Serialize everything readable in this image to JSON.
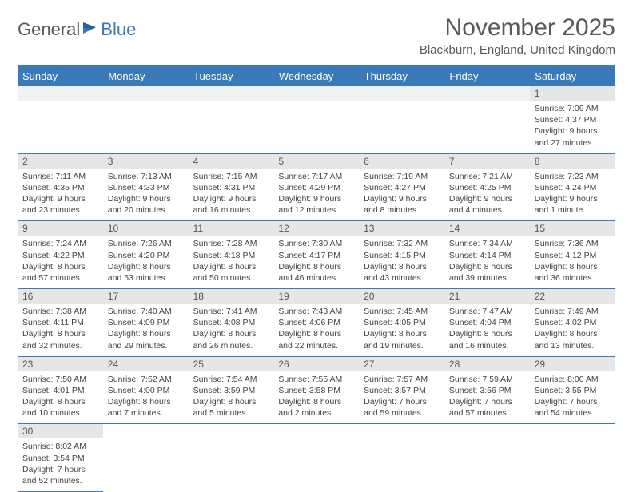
{
  "logo": {
    "word1": "General",
    "word2": "Blue"
  },
  "title": "November 2025",
  "subtitle": "Blackburn, England, United Kingdom",
  "day_headers": [
    "Sunday",
    "Monday",
    "Tuesday",
    "Wednesday",
    "Thursday",
    "Friday",
    "Saturday"
  ],
  "colors": {
    "header_bg": "#3a7ab8",
    "header_text": "#ffffff",
    "daynum_bg": "#e6e6e6",
    "rule": "#3a7ab8",
    "text": "#444444"
  },
  "weeks": [
    [
      {
        "n": "",
        "lines": []
      },
      {
        "n": "",
        "lines": []
      },
      {
        "n": "",
        "lines": []
      },
      {
        "n": "",
        "lines": []
      },
      {
        "n": "",
        "lines": []
      },
      {
        "n": "",
        "lines": []
      },
      {
        "n": "1",
        "lines": [
          "Sunrise: 7:09 AM",
          "Sunset: 4:37 PM",
          "Daylight: 9 hours and 27 minutes."
        ]
      }
    ],
    [
      {
        "n": "2",
        "lines": [
          "Sunrise: 7:11 AM",
          "Sunset: 4:35 PM",
          "Daylight: 9 hours and 23 minutes."
        ]
      },
      {
        "n": "3",
        "lines": [
          "Sunrise: 7:13 AM",
          "Sunset: 4:33 PM",
          "Daylight: 9 hours and 20 minutes."
        ]
      },
      {
        "n": "4",
        "lines": [
          "Sunrise: 7:15 AM",
          "Sunset: 4:31 PM",
          "Daylight: 9 hours and 16 minutes."
        ]
      },
      {
        "n": "5",
        "lines": [
          "Sunrise: 7:17 AM",
          "Sunset: 4:29 PM",
          "Daylight: 9 hours and 12 minutes."
        ]
      },
      {
        "n": "6",
        "lines": [
          "Sunrise: 7:19 AM",
          "Sunset: 4:27 PM",
          "Daylight: 9 hours and 8 minutes."
        ]
      },
      {
        "n": "7",
        "lines": [
          "Sunrise: 7:21 AM",
          "Sunset: 4:25 PM",
          "Daylight: 9 hours and 4 minutes."
        ]
      },
      {
        "n": "8",
        "lines": [
          "Sunrise: 7:23 AM",
          "Sunset: 4:24 PM",
          "Daylight: 9 hours and 1 minute."
        ]
      }
    ],
    [
      {
        "n": "9",
        "lines": [
          "Sunrise: 7:24 AM",
          "Sunset: 4:22 PM",
          "Daylight: 8 hours and 57 minutes."
        ]
      },
      {
        "n": "10",
        "lines": [
          "Sunrise: 7:26 AM",
          "Sunset: 4:20 PM",
          "Daylight: 8 hours and 53 minutes."
        ]
      },
      {
        "n": "11",
        "lines": [
          "Sunrise: 7:28 AM",
          "Sunset: 4:18 PM",
          "Daylight: 8 hours and 50 minutes."
        ]
      },
      {
        "n": "12",
        "lines": [
          "Sunrise: 7:30 AM",
          "Sunset: 4:17 PM",
          "Daylight: 8 hours and 46 minutes."
        ]
      },
      {
        "n": "13",
        "lines": [
          "Sunrise: 7:32 AM",
          "Sunset: 4:15 PM",
          "Daylight: 8 hours and 43 minutes."
        ]
      },
      {
        "n": "14",
        "lines": [
          "Sunrise: 7:34 AM",
          "Sunset: 4:14 PM",
          "Daylight: 8 hours and 39 minutes."
        ]
      },
      {
        "n": "15",
        "lines": [
          "Sunrise: 7:36 AM",
          "Sunset: 4:12 PM",
          "Daylight: 8 hours and 36 minutes."
        ]
      }
    ],
    [
      {
        "n": "16",
        "lines": [
          "Sunrise: 7:38 AM",
          "Sunset: 4:11 PM",
          "Daylight: 8 hours and 32 minutes."
        ]
      },
      {
        "n": "17",
        "lines": [
          "Sunrise: 7:40 AM",
          "Sunset: 4:09 PM",
          "Daylight: 8 hours and 29 minutes."
        ]
      },
      {
        "n": "18",
        "lines": [
          "Sunrise: 7:41 AM",
          "Sunset: 4:08 PM",
          "Daylight: 8 hours and 26 minutes."
        ]
      },
      {
        "n": "19",
        "lines": [
          "Sunrise: 7:43 AM",
          "Sunset: 4:06 PM",
          "Daylight: 8 hours and 22 minutes."
        ]
      },
      {
        "n": "20",
        "lines": [
          "Sunrise: 7:45 AM",
          "Sunset: 4:05 PM",
          "Daylight: 8 hours and 19 minutes."
        ]
      },
      {
        "n": "21",
        "lines": [
          "Sunrise: 7:47 AM",
          "Sunset: 4:04 PM",
          "Daylight: 8 hours and 16 minutes."
        ]
      },
      {
        "n": "22",
        "lines": [
          "Sunrise: 7:49 AM",
          "Sunset: 4:02 PM",
          "Daylight: 8 hours and 13 minutes."
        ]
      }
    ],
    [
      {
        "n": "23",
        "lines": [
          "Sunrise: 7:50 AM",
          "Sunset: 4:01 PM",
          "Daylight: 8 hours and 10 minutes."
        ]
      },
      {
        "n": "24",
        "lines": [
          "Sunrise: 7:52 AM",
          "Sunset: 4:00 PM",
          "Daylight: 8 hours and 7 minutes."
        ]
      },
      {
        "n": "25",
        "lines": [
          "Sunrise: 7:54 AM",
          "Sunset: 3:59 PM",
          "Daylight: 8 hours and 5 minutes."
        ]
      },
      {
        "n": "26",
        "lines": [
          "Sunrise: 7:55 AM",
          "Sunset: 3:58 PM",
          "Daylight: 8 hours and 2 minutes."
        ]
      },
      {
        "n": "27",
        "lines": [
          "Sunrise: 7:57 AM",
          "Sunset: 3:57 PM",
          "Daylight: 7 hours and 59 minutes."
        ]
      },
      {
        "n": "28",
        "lines": [
          "Sunrise: 7:59 AM",
          "Sunset: 3:56 PM",
          "Daylight: 7 hours and 57 minutes."
        ]
      },
      {
        "n": "29",
        "lines": [
          "Sunrise: 8:00 AM",
          "Sunset: 3:55 PM",
          "Daylight: 7 hours and 54 minutes."
        ]
      }
    ],
    [
      {
        "n": "30",
        "lines": [
          "Sunrise: 8:02 AM",
          "Sunset: 3:54 PM",
          "Daylight: 7 hours and 52 minutes."
        ]
      },
      {
        "n": "",
        "lines": []
      },
      {
        "n": "",
        "lines": []
      },
      {
        "n": "",
        "lines": []
      },
      {
        "n": "",
        "lines": []
      },
      {
        "n": "",
        "lines": []
      },
      {
        "n": "",
        "lines": []
      }
    ]
  ]
}
